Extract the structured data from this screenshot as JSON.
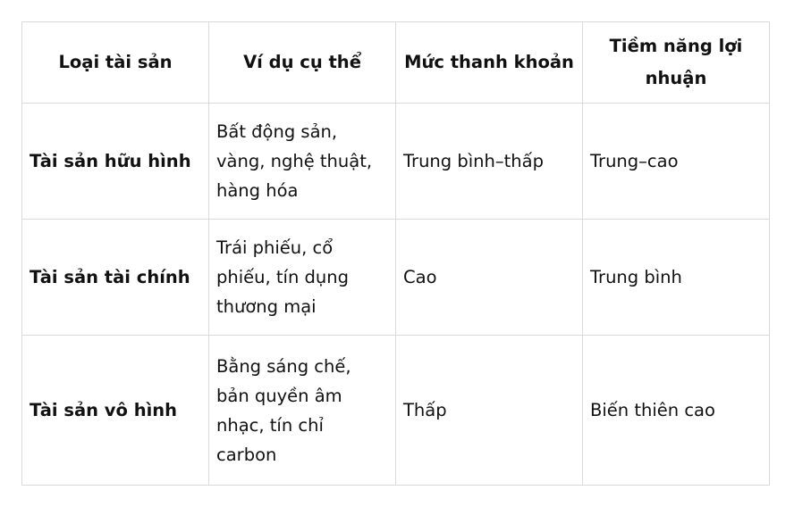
{
  "table": {
    "headers": [
      "Loại tài sản",
      "Ví dụ cụ thể",
      "Mức thanh khoản",
      "Tiềm năng lợi nhuận"
    ],
    "rows": [
      [
        "Tài sản hữu hình",
        "Bất động sản, vàng, nghệ thuật, hàng hóa",
        "Trung bình–thấp",
        "Trung–cao"
      ],
      [
        "Tài sản tài chính",
        "Trái phiếu, cổ phiếu, tín dụng thương mại",
        "Cao",
        "Trung bình"
      ],
      [
        "Tài sản vô hình",
        "Bằng sáng chế, bản quyền âm nhạc, tín chỉ carbon",
        "Thấp",
        "Biến thiên cao"
      ]
    ]
  }
}
